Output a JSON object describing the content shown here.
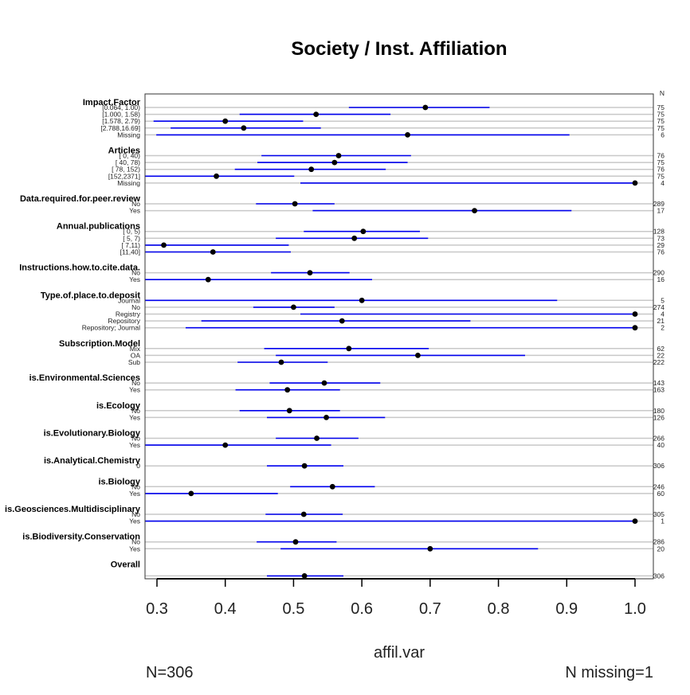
{
  "chart_data": {
    "type": "dotplot-ci",
    "title": "Society / Inst. Affiliation",
    "xlabel": "affil.var",
    "xlim": [
      0.283,
      1.027
    ],
    "xticks": [
      0.3,
      0.4,
      0.5,
      0.6,
      0.7,
      0.8,
      0.9,
      1.0
    ],
    "xtick_labels": [
      "0.3",
      "0.4",
      "0.5",
      "0.6",
      "0.7",
      "0.8",
      "0.9",
      "1.0"
    ],
    "n_header": "N",
    "footer_left": "N=306",
    "footer_right": "N missing=1",
    "colors": {
      "ci": "#0000ee",
      "point": "#000000",
      "guide": "#c8c8c8",
      "axis": "#333333"
    },
    "groups": [
      {
        "label": "Impact.Factor",
        "rows": [
          {
            "level": "[0.064, 1.00)",
            "value": 0.693,
            "lo": 0.581,
            "hi": 0.787,
            "n": "75"
          },
          {
            "level": "[1.000, 1.58)",
            "value": 0.533,
            "lo": 0.421,
            "hi": 0.642,
            "n": "75"
          },
          {
            "level": "[1.578, 2.79)",
            "value": 0.4,
            "lo": 0.295,
            "hi": 0.514,
            "n": "75"
          },
          {
            "level": "[2.788,16.69]",
            "value": 0.427,
            "lo": 0.32,
            "hi": 0.54,
            "n": "75"
          },
          {
            "level": "Missing",
            "value": 0.667,
            "lo": 0.299,
            "hi": 0.904,
            "n": "6"
          }
        ]
      },
      {
        "label": "Articles",
        "rows": [
          {
            "level": "[  0,  40)",
            "value": 0.566,
            "lo": 0.453,
            "hi": 0.672,
            "n": "76"
          },
          {
            "level": "[ 40,  78)",
            "value": 0.56,
            "lo": 0.447,
            "hi": 0.667,
            "n": "75"
          },
          {
            "level": "[ 78, 152)",
            "value": 0.526,
            "lo": 0.414,
            "hi": 0.635,
            "n": "76"
          },
          {
            "level": "[152,2371]",
            "value": 0.387,
            "lo": 0.28,
            "hi": 0.501,
            "n": "75"
          },
          {
            "level": "Missing",
            "value": 1.0,
            "lo": 0.51,
            "hi": 1.0,
            "n": "4"
          }
        ]
      },
      {
        "label": "Data.required.for.peer.review",
        "rows": [
          {
            "level": "No",
            "value": 0.502,
            "lo": 0.445,
            "hi": 0.56,
            "n": "289"
          },
          {
            "level": "Yes",
            "value": 0.765,
            "lo": 0.528,
            "hi": 0.907,
            "n": "17"
          }
        ]
      },
      {
        "label": "Annual.publications",
        "rows": [
          {
            "level": "[ 0, 5)",
            "value": 0.602,
            "lo": 0.515,
            "hi": 0.685,
            "n": "128"
          },
          {
            "level": "[ 5, 7)",
            "value": 0.589,
            "lo": 0.474,
            "hi": 0.697,
            "n": "73"
          },
          {
            "level": "[ 7,11)",
            "value": 0.31,
            "lo": 0.28,
            "hi": 0.493,
            "n": "29"
          },
          {
            "level": "[11,40]",
            "value": 0.382,
            "lo": 0.28,
            "hi": 0.496,
            "n": "76"
          }
        ]
      },
      {
        "label": "Instructions.how.to.cite.data.",
        "rows": [
          {
            "level": "No",
            "value": 0.524,
            "lo": 0.467,
            "hi": 0.582,
            "n": "290"
          },
          {
            "level": "Yes",
            "value": 0.375,
            "lo": 0.28,
            "hi": 0.615,
            "n": "16"
          }
        ]
      },
      {
        "label": "Type.of.place.to.deposit",
        "rows": [
          {
            "level": "Journal",
            "value": 0.6,
            "lo": 0.28,
            "hi": 0.886,
            "n": "5"
          },
          {
            "level": "No",
            "value": 0.5,
            "lo": 0.441,
            "hi": 0.56,
            "n": "274"
          },
          {
            "level": "Registry",
            "value": 1.0,
            "lo": 0.51,
            "hi": 1.0,
            "n": "4"
          },
          {
            "level": "Repository",
            "value": 0.571,
            "lo": 0.365,
            "hi": 0.759,
            "n": "21"
          },
          {
            "level": "Repository; Journal",
            "value": 1.0,
            "lo": 0.342,
            "hi": 1.0,
            "n": "2"
          }
        ]
      },
      {
        "label": "Subscription.Model",
        "rows": [
          {
            "level": "Mix",
            "value": 0.581,
            "lo": 0.457,
            "hi": 0.698,
            "n": "62"
          },
          {
            "level": "OA",
            "value": 0.682,
            "lo": 0.474,
            "hi": 0.839,
            "n": "22"
          },
          {
            "level": "Sub",
            "value": 0.482,
            "lo": 0.418,
            "hi": 0.55,
            "n": "222"
          }
        ]
      },
      {
        "label": "is.Environmental.Sciences",
        "rows": [
          {
            "level": "No",
            "value": 0.545,
            "lo": 0.465,
            "hi": 0.627,
            "n": "143"
          },
          {
            "level": "Yes",
            "value": 0.491,
            "lo": 0.415,
            "hi": 0.568,
            "n": "163"
          }
        ]
      },
      {
        "label": "is.Ecology",
        "rows": [
          {
            "level": "No",
            "value": 0.494,
            "lo": 0.421,
            "hi": 0.568,
            "n": "180"
          },
          {
            "level": "Yes",
            "value": 0.548,
            "lo": 0.461,
            "hi": 0.634,
            "n": "126"
          }
        ]
      },
      {
        "label": "is.Evolutionary.Biology",
        "rows": [
          {
            "level": "No",
            "value": 0.534,
            "lo": 0.474,
            "hi": 0.595,
            "n": "266"
          },
          {
            "level": "Yes",
            "value": 0.4,
            "lo": 0.28,
            "hi": 0.555,
            "n": "40"
          }
        ]
      },
      {
        "label": "is.Analytical.Chemistry",
        "rows": [
          {
            "level": "0",
            "value": 0.516,
            "lo": 0.461,
            "hi": 0.573,
            "n": "306"
          }
        ]
      },
      {
        "label": "is.Biology",
        "rows": [
          {
            "level": "No",
            "value": 0.557,
            "lo": 0.495,
            "hi": 0.619,
            "n": "246"
          },
          {
            "level": "Yes",
            "value": 0.35,
            "lo": 0.28,
            "hi": 0.477,
            "n": "60"
          }
        ]
      },
      {
        "label": "is.Geosciences.Multidisciplinary",
        "rows": [
          {
            "level": "No",
            "value": 0.515,
            "lo": 0.459,
            "hi": 0.572,
            "n": "305"
          },
          {
            "level": "Yes",
            "value": 1.0,
            "lo": 0.28,
            "hi": 1.0,
            "n": "1"
          }
        ]
      },
      {
        "label": "is.Biodiversity.Conservation",
        "rows": [
          {
            "level": "No",
            "value": 0.503,
            "lo": 0.446,
            "hi": 0.563,
            "n": "286"
          },
          {
            "level": "Yes",
            "value": 0.7,
            "lo": 0.481,
            "hi": 0.858,
            "n": "20"
          }
        ]
      },
      {
        "label": "Overall",
        "rows": [
          {
            "level": "",
            "value": 0.516,
            "lo": 0.461,
            "hi": 0.573,
            "n": "306"
          }
        ]
      }
    ]
  }
}
